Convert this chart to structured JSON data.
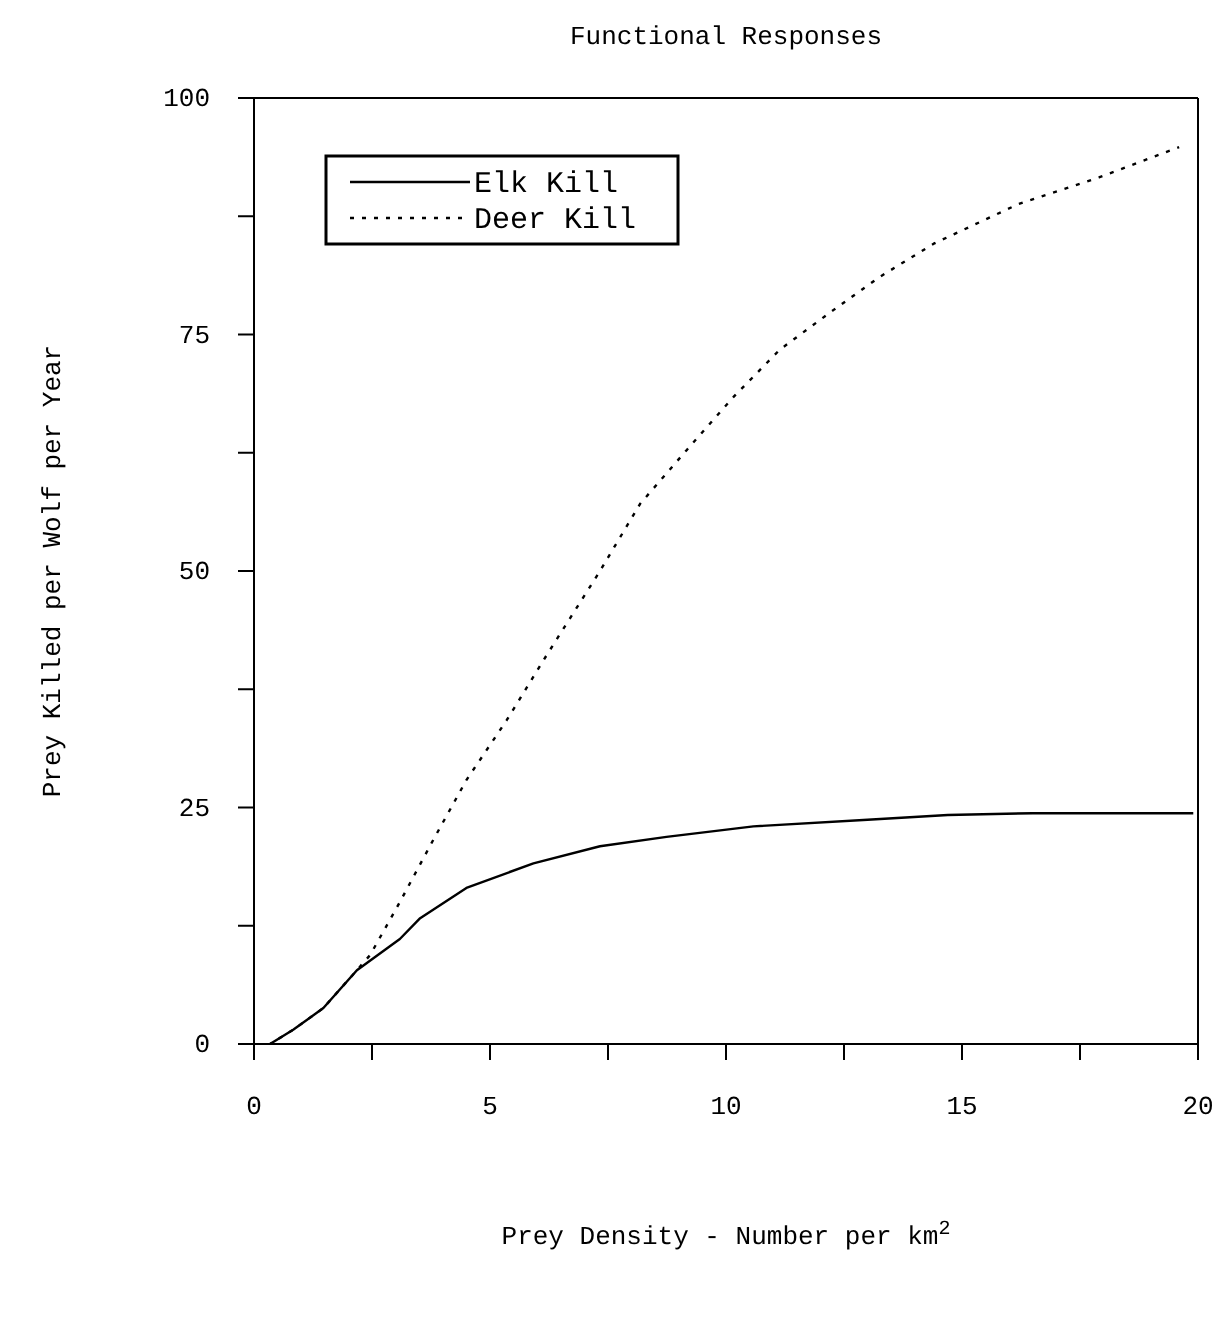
{
  "chart_data": {
    "type": "line",
    "title": "Functional Responses",
    "xlabel": "Prey Density - Number per km$^{2}$",
    "ylabel": "Prey Killed per Wolf per Year",
    "xlim": [
      0,
      20
    ],
    "xticks": [
      0,
      {
        "value": 2.5,
        "label": null
      },
      5,
      {
        "value": 7.5,
        "label": null
      },
      10,
      {
        "value": 12.5,
        "label": null
      },
      15,
      {
        "value": 17.5,
        "label": null
      },
      20
    ],
    "ylim": [
      0,
      100
    ],
    "yticks": [
      0,
      {
        "value": 12.5,
        "label": null
      },
      25,
      {
        "value": 37.5,
        "label": null
      },
      50,
      {
        "value": 62.5,
        "label": null
      },
      75,
      {
        "value": 87.5,
        "label": null
      },
      100
    ],
    "grid": false,
    "legend": "top left",
    "marker": "none",
    "series": [
      {
        "name": "Elk Kill",
        "color": "#000000",
        "line_style": "solid",
        "x": [
          0.34,
          0.83,
          1.47,
          2.18,
          3.09,
          3.52,
          4.5,
          5.92,
          7.33,
          8.74,
          10.58,
          13.0,
          14.7,
          16.5,
          19.9
        ],
        "values": [
          0,
          1.5,
          3.8,
          7.8,
          11.1,
          13.3,
          16.5,
          19.1,
          20.9,
          21.9,
          23.0,
          23.7,
          24.2,
          24.4,
          24.4
        ]
      },
      {
        "name": "Deer Kill",
        "color": "#000000",
        "line_style": "dotted",
        "x": [
          0.34,
          0.83,
          1.47,
          2.18,
          2.46,
          3.09,
          3.8,
          4.5,
          5.35,
          6.2,
          7.33,
          8.18,
          9.17,
          10.16,
          11.14,
          12.28,
          13.26,
          14.4,
          16.2,
          17.9,
          19.6
        ],
        "values": [
          0,
          1.5,
          3.8,
          7.8,
          9.4,
          15.0,
          21.6,
          27.9,
          34.2,
          41.1,
          50.0,
          57.1,
          62.8,
          68.4,
          73.4,
          77.6,
          81.1,
          84.6,
          88.8,
          91.6,
          94.8
        ]
      }
    ]
  }
}
